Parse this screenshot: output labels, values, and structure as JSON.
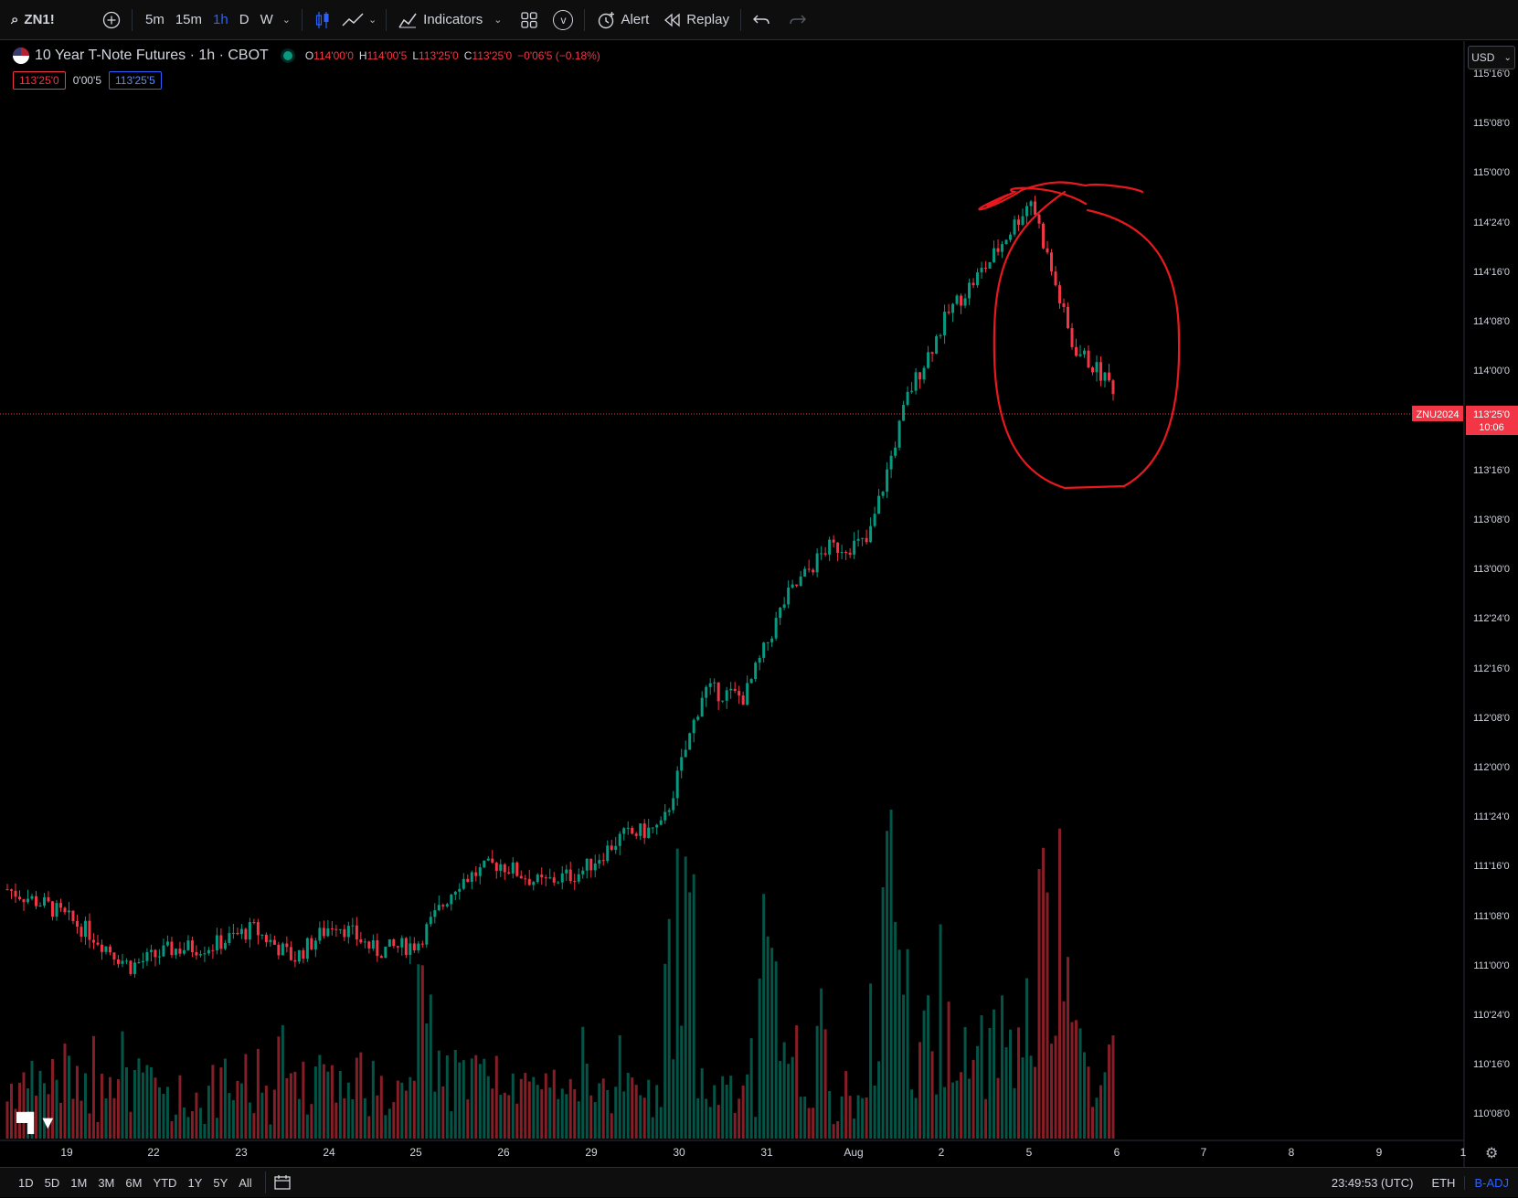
{
  "toolbar": {
    "symbol": "ZN1!",
    "intervals": [
      "5m",
      "15m",
      "1h",
      "D",
      "W"
    ],
    "active_interval": "1h",
    "indicators_label": "Indicators",
    "alert_label": "Alert",
    "replay_label": "Replay",
    "v_label": "v"
  },
  "legend": {
    "title": "10 Year T-Note Futures · 1h · CBOT",
    "o_label": "O",
    "o_value": "114'00'0",
    "h_label": "H",
    "h_value": "114'00'5",
    "l_label": "L",
    "l_value": "113'25'0",
    "c_label": "C",
    "c_value": "113'25'0",
    "change": "−0'06'5 (−0.18%)",
    "bid": "113'25'0",
    "spread": "0'00'5",
    "ask": "113'25'5"
  },
  "currency": "USD",
  "price_axis": {
    "ticks": [
      "115'16'0",
      "115'08'0",
      "115'00'0",
      "114'24'0",
      "114'16'0",
      "114'08'0",
      "114'00'0",
      "113'16'0",
      "113'08'0",
      "113'00'0",
      "112'24'0",
      "112'16'0",
      "112'08'0",
      "112'00'0",
      "111'24'0",
      "111'16'0",
      "111'08'0",
      "111'00'0",
      "110'24'0",
      "110'16'0",
      "110'08'0"
    ],
    "current_symbol": "ZNU2024",
    "current_price": "113'25'0",
    "countdown": "10:06"
  },
  "time_axis": {
    "labels": [
      "19",
      "22",
      "23",
      "24",
      "25",
      "26",
      "29",
      "30",
      "31",
      "Aug",
      "2",
      "5",
      "6",
      "7",
      "8",
      "9",
      "1"
    ]
  },
  "bottombar": {
    "ranges": [
      "1D",
      "5D",
      "1M",
      "3M",
      "6M",
      "YTD",
      "1Y",
      "5Y",
      "All"
    ],
    "clock": "23:49:53 (UTC)",
    "session": "ETH",
    "adjust": "B-ADJ"
  },
  "colors": {
    "up": "#089981",
    "down": "#f23645",
    "annotation": "#e8191e",
    "accent": "#2962ff"
  },
  "chart_data": {
    "type": "candlestick",
    "symbol": "ZNU2024",
    "interval": "1h",
    "price_unit": "points (32nds shown on axis)",
    "ylim": [
      110.2,
      115.55
    ],
    "grid": false,
    "close_path": [
      {
        "date": "Jul 18",
        "close": 111.19
      },
      {
        "date": "Jul 19",
        "close": 111.1
      },
      {
        "date": "Jul 22",
        "close": 110.96
      },
      {
        "date": "Jul 23",
        "close": 110.78
      },
      {
        "date": "Jul 23b",
        "close": 110.87
      },
      {
        "date": "Jul 24",
        "close": 110.89
      },
      {
        "date": "Jul 24b",
        "close": 110.98
      },
      {
        "date": "Jul 25",
        "close": 110.82
      },
      {
        "date": "Jul 25b",
        "close": 111.02
      },
      {
        "date": "Jul 26",
        "close": 110.86
      },
      {
        "date": "Jul 26b",
        "close": 110.9
      },
      {
        "date": "Jul 29",
        "close": 111.23
      },
      {
        "date": "Jul 29b",
        "close": 111.33
      },
      {
        "date": "Jul 30",
        "close": 111.22
      },
      {
        "date": "Jul 30b",
        "close": 111.28
      },
      {
        "date": "Jul 31",
        "close": 111.47
      },
      {
        "date": "Jul 31b",
        "close": 111.52
      },
      {
        "date": "Aug 1",
        "close": 112.25
      },
      {
        "date": "Aug 1b",
        "close": 112.21
      },
      {
        "date": "Aug 1c",
        "close": 112.73
      },
      {
        "date": "Aug 2",
        "close": 113.0
      },
      {
        "date": "Aug 2b",
        "close": 113.03
      },
      {
        "date": "Aug 2c",
        "close": 113.82
      },
      {
        "date": "Aug 5",
        "close": 114.26
      },
      {
        "date": "Aug 5b",
        "close": 114.53
      },
      {
        "date": "Aug 5c",
        "close": 114.86
      },
      {
        "date": "Aug 5d",
        "close": 114.08
      },
      {
        "date": "Aug 5e",
        "close": 113.86
      }
    ]
  }
}
